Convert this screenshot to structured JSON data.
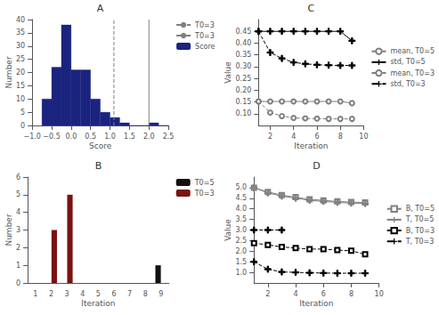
{
  "chart_data": [
    {
      "type": "histogram",
      "title": "A",
      "xlabel": "Score",
      "ylabel": "Number",
      "bins": [
        -0.75,
        -0.5,
        -0.25,
        0.0,
        0.25,
        0.5,
        0.75,
        1.0,
        1.25,
        1.5,
        1.75,
        2.0,
        2.25,
        2.5
      ],
      "series": [
        {
          "name": "Score",
          "color": "#1a237e",
          "values": [
            10,
            22,
            38,
            21,
            21,
            10,
            5,
            3,
            1,
            0,
            0,
            1,
            0
          ]
        }
      ],
      "vlines": [
        {
          "name": "T0=3",
          "x": 1.1,
          "color": "gray",
          "line_style": "dashed"
        },
        {
          "name": "T0=3",
          "x": 2.0,
          "color": "gray",
          "line_style": "solid"
        }
      ],
      "xlim": [
        -1,
        2.5
      ],
      "ylim": [
        0,
        40
      ],
      "xticks": [
        {
          "value": -1,
          "label": "−1.0"
        },
        {
          "value": -0.5,
          "label": "−0.5"
        },
        {
          "value": 0,
          "label": "0.0"
        },
        0.5,
        {
          "value": 1,
          "label": "1.0"
        },
        1.5,
        {
          "value": 2,
          "label": "2.0"
        },
        2.5
      ],
      "yticks": [
        0,
        5,
        10,
        15,
        20,
        25,
        30,
        35,
        40
      ],
      "legend": "upper right",
      "grid": false
    },
    {
      "type": "bar",
      "title": "B",
      "xlabel": "Iteration",
      "ylabel": "Number",
      "categories": [
        1,
        2,
        3,
        4,
        5,
        6,
        7,
        8,
        9
      ],
      "series": [
        {
          "name": "T0=5",
          "color": "#111111",
          "values": [
            0,
            0,
            0,
            0,
            0,
            0,
            0,
            0,
            1
          ]
        },
        {
          "name": "T0=3",
          "color": "#7b1010",
          "values": [
            0,
            3,
            5,
            0,
            0,
            0,
            0,
            0,
            0
          ]
        }
      ],
      "ylim": [
        0,
        6
      ],
      "yticks": [
        0,
        1,
        2,
        3,
        4,
        5,
        6
      ],
      "legend": "upper right",
      "grid": false
    },
    {
      "type": "line",
      "title": "C",
      "xlabel": "Iteration",
      "ylabel": "Value",
      "x": [
        1,
        2,
        3,
        4,
        5,
        6,
        7,
        8,
        9
      ],
      "series": [
        {
          "name": "mean, T0=5",
          "color": "gray",
          "marker": "circle",
          "line_style": "solid",
          "values": [
            0.152,
            0.152,
            0.152,
            0.152,
            0.152,
            0.152,
            0.152,
            0.152,
            0.145
          ]
        },
        {
          "name": "std, T0=5",
          "color": "black",
          "marker": "plus",
          "line_style": "solid",
          "values": [
            0.45,
            0.45,
            0.45,
            0.45,
            0.45,
            0.45,
            0.45,
            0.45,
            0.41
          ]
        },
        {
          "name": "mean, T0=3",
          "color": "gray",
          "marker": "circle",
          "line_style": "dashed",
          "values": [
            0.152,
            0.105,
            0.09,
            0.082,
            0.08,
            0.079,
            0.078,
            0.078,
            0.078
          ]
        },
        {
          "name": "std, T0=3",
          "color": "black",
          "marker": "plus",
          "line_style": "dashed",
          "values": [
            0.45,
            0.36,
            0.335,
            0.318,
            0.312,
            0.308,
            0.306,
            0.305,
            0.305
          ]
        }
      ],
      "xlim": [
        1,
        10
      ],
      "xticks": [
        2,
        4,
        6,
        8,
        10
      ],
      "ylim": [
        0.05,
        0.5
      ],
      "yticks": [
        {
          "value": 0.1,
          "label": "0.10"
        },
        0.15,
        {
          "value": 0.2,
          "label": "0.20"
        },
        0.25,
        {
          "value": 0.3,
          "label": "0.30"
        },
        0.35,
        {
          "value": 0.4,
          "label": "0.40"
        },
        0.45
      ],
      "legend": "center right",
      "grid": false
    },
    {
      "type": "line",
      "title": "D",
      "xlabel": "Iteration",
      "ylabel": "Value",
      "x": [
        1,
        2,
        3,
        4,
        5,
        6,
        7,
        8,
        9
      ],
      "series": [
        {
          "name": "B, T0=5",
          "color": "gray",
          "marker": "square",
          "line_style": "solid",
          "values": [
            5.0,
            4.8,
            4.65,
            4.55,
            4.45,
            4.4,
            4.35,
            4.32,
            4.3
          ]
        },
        {
          "name": "T, T0=5",
          "color": "gray",
          "marker": "plus",
          "line_style": "solid",
          "values": [
            5.0,
            4.75,
            4.6,
            4.5,
            4.4,
            4.35,
            4.3,
            4.27,
            4.25
          ]
        },
        {
          "name": "B, T0=3",
          "color": "black",
          "marker": "square",
          "line_style": "dashed",
          "values": [
            2.38,
            2.3,
            2.2,
            2.15,
            2.1,
            2.1,
            2.05,
            2.02,
            1.85
          ]
        },
        {
          "x": [
            1,
            2,
            3
          ],
          "color": "black",
          "marker": "plus",
          "line_style": "dashed",
          "values": [
            3.0,
            3.0,
            3.0
          ]
        },
        {
          "name": "T, T0=3",
          "color": "black",
          "marker": "plus",
          "line_style": "dashed",
          "values": [
            1.5,
            1.15,
            1.02,
            1.0,
            0.98,
            0.97,
            0.96,
            0.96,
            0.96
          ]
        }
      ],
      "xlim": [
        1,
        10
      ],
      "xticks": [
        2,
        4,
        6,
        8,
        10
      ],
      "ylim": [
        0.5,
        5.5
      ],
      "yticks": [
        {
          "value": 1,
          "label": "1.0"
        },
        1.5,
        {
          "value": 2,
          "label": "2.0"
        },
        2.5,
        {
          "value": 3,
          "label": "3.0"
        },
        3.5,
        {
          "value": 4,
          "label": "4.0"
        },
        4.5,
        {
          "value": 5,
          "label": "5.0"
        }
      ],
      "legend": "center right",
      "grid": false
    }
  ]
}
